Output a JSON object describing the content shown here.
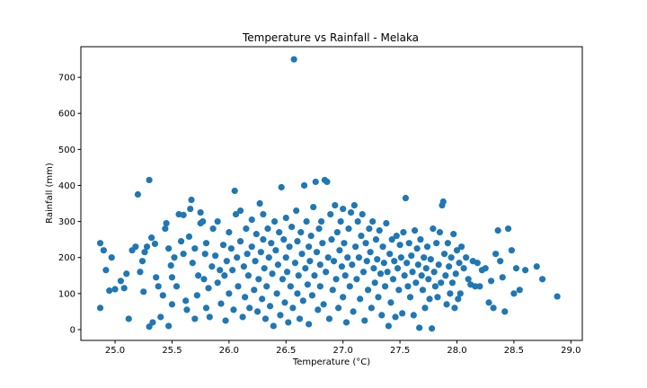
{
  "chart_data": {
    "type": "scatter",
    "title": "Temperature vs Rainfall - Melaka",
    "xlabel": "Temperature (°C)",
    "ylabel": "Rainfall (mm)",
    "xlim": [
      24.7,
      29.1
    ],
    "ylim": [
      -30,
      785
    ],
    "xticks": [
      25.0,
      25.5,
      26.0,
      26.5,
      27.0,
      27.5,
      28.0,
      28.5,
      29.0
    ],
    "xtick_labels": [
      "25.0",
      "25.5",
      "26.0",
      "26.5",
      "27.0",
      "27.5",
      "28.0",
      "28.5",
      "29.0"
    ],
    "yticks": [
      0,
      100,
      200,
      300,
      400,
      500,
      600,
      700
    ],
    "ytick_labels": [
      "0",
      "100",
      "200",
      "300",
      "400",
      "500",
      "600",
      "700"
    ],
    "grid": false,
    "marker_color": "#1f77b4",
    "series": [
      {
        "points": [
          [
            24.87,
            240
          ],
          [
            24.9,
            220
          ],
          [
            24.92,
            165
          ],
          [
            24.87,
            60
          ],
          [
            24.95,
            108
          ],
          [
            24.97,
            200
          ],
          [
            25.0,
            112
          ],
          [
            25.05,
            135
          ],
          [
            25.08,
            115
          ],
          [
            25.1,
            155
          ],
          [
            25.12,
            30
          ],
          [
            25.15,
            220
          ],
          [
            25.18,
            230
          ],
          [
            25.2,
            375
          ],
          [
            25.22,
            160
          ],
          [
            25.24,
            190
          ],
          [
            25.25,
            105
          ],
          [
            25.26,
            215
          ],
          [
            25.28,
            230
          ],
          [
            25.3,
            415
          ],
          [
            25.3,
            8
          ],
          [
            25.32,
            255
          ],
          [
            25.33,
            20
          ],
          [
            25.35,
            238
          ],
          [
            25.36,
            145
          ],
          [
            25.38,
            120
          ],
          [
            25.4,
            35
          ],
          [
            25.42,
            95
          ],
          [
            25.44,
            280
          ],
          [
            25.45,
            295
          ],
          [
            25.47,
            10
          ],
          [
            25.47,
            225
          ],
          [
            25.49,
            178
          ],
          [
            25.5,
            70
          ],
          [
            25.5,
            145
          ],
          [
            25.52,
            200
          ],
          [
            25.54,
            120
          ],
          [
            25.56,
            320
          ],
          [
            25.58,
            245
          ],
          [
            25.6,
            210
          ],
          [
            25.6,
            318
          ],
          [
            25.62,
            80
          ],
          [
            25.63,
            55
          ],
          [
            25.65,
            258
          ],
          [
            25.66,
            335
          ],
          [
            25.67,
            360
          ],
          [
            25.68,
            185
          ],
          [
            25.7,
            30
          ],
          [
            25.7,
            225
          ],
          [
            25.72,
            95
          ],
          [
            25.73,
            150
          ],
          [
            25.75,
            295
          ],
          [
            25.75,
            325
          ],
          [
            25.77,
            300
          ],
          [
            25.78,
            140
          ],
          [
            25.79,
            210
          ],
          [
            25.8,
            60
          ],
          [
            25.8,
            240
          ],
          [
            25.82,
            115
          ],
          [
            25.83,
            35
          ],
          [
            25.85,
            175
          ],
          [
            25.86,
            280
          ],
          [
            25.88,
            205
          ],
          [
            25.9,
            130
          ],
          [
            25.9,
            300
          ],
          [
            25.92,
            165
          ],
          [
            25.93,
            72
          ],
          [
            25.95,
            235
          ],
          [
            25.96,
            150
          ],
          [
            25.97,
            25
          ],
          [
            25.98,
            190
          ],
          [
            26.0,
            270
          ],
          [
            26.0,
            100
          ],
          [
            26.02,
            225
          ],
          [
            26.03,
            165
          ],
          [
            26.04,
            55
          ],
          [
            26.05,
            385
          ],
          [
            26.06,
            320
          ],
          [
            26.07,
            200
          ],
          [
            26.08,
            120
          ],
          [
            26.1,
            330
          ],
          [
            26.1,
            245
          ],
          [
            26.12,
            35
          ],
          [
            26.13,
            175
          ],
          [
            26.14,
            90
          ],
          [
            26.15,
            280
          ],
          [
            26.16,
            210
          ],
          [
            26.17,
            150
          ],
          [
            26.18,
            60
          ],
          [
            26.2,
            305
          ],
          [
            26.2,
            230
          ],
          [
            26.22,
            110
          ],
          [
            26.23,
            190
          ],
          [
            26.24,
            265
          ],
          [
            26.25,
            50
          ],
          [
            26.26,
            140
          ],
          [
            26.27,
            350
          ],
          [
            26.28,
            215
          ],
          [
            26.29,
            85
          ],
          [
            26.3,
            320
          ],
          [
            26.3,
            250
          ],
          [
            26.31,
            170
          ],
          [
            26.32,
            30
          ],
          [
            26.33,
            120
          ],
          [
            26.34,
            280
          ],
          [
            26.35,
            200
          ],
          [
            26.36,
            65
          ],
          [
            26.37,
            240
          ],
          [
            26.38,
            155
          ],
          [
            26.39,
            10
          ],
          [
            26.4,
            300
          ],
          [
            26.41,
            220
          ],
          [
            26.42,
            100
          ],
          [
            26.43,
            180
          ],
          [
            26.44,
            270
          ],
          [
            26.45,
            40
          ],
          [
            26.46,
            395
          ],
          [
            26.47,
            140
          ],
          [
            26.48,
            250
          ],
          [
            26.49,
            75
          ],
          [
            26.5,
            200
          ],
          [
            26.5,
            310
          ],
          [
            26.51,
            160
          ],
          [
            26.52,
            20
          ],
          [
            26.53,
            230
          ],
          [
            26.54,
            120
          ],
          [
            26.55,
            285
          ],
          [
            26.56,
            60
          ],
          [
            26.57,
            750
          ],
          [
            26.58,
            185
          ],
          [
            26.59,
            330
          ],
          [
            26.6,
            100
          ],
          [
            26.6,
            245
          ],
          [
            26.61,
            150
          ],
          [
            26.62,
            30
          ],
          [
            26.63,
            270
          ],
          [
            26.64,
            210
          ],
          [
            26.65,
            80
          ],
          [
            26.66,
            400
          ],
          [
            26.67,
            170
          ],
          [
            26.68,
            300
          ],
          [
            26.69,
            125
          ],
          [
            26.7,
            230
          ],
          [
            26.7,
            15
          ],
          [
            26.71,
            190
          ],
          [
            26.72,
            260
          ],
          [
            26.73,
            95
          ],
          [
            26.74,
            340
          ],
          [
            26.75,
            150
          ],
          [
            26.76,
            410
          ],
          [
            26.77,
            215
          ],
          [
            26.78,
            55
          ],
          [
            26.79,
            280
          ],
          [
            26.8,
            180
          ],
          [
            26.8,
            120
          ],
          [
            26.81,
            300
          ],
          [
            26.82,
            240
          ],
          [
            26.83,
            70
          ],
          [
            26.84,
            415
          ],
          [
            26.85,
            160
          ],
          [
            26.86,
            410
          ],
          [
            26.87,
            200
          ],
          [
            26.88,
            30
          ],
          [
            26.89,
            320
          ],
          [
            26.9,
            250
          ],
          [
            26.91,
            110
          ],
          [
            26.92,
            190
          ],
          [
            26.93,
            345
          ],
          [
            26.94,
            140
          ],
          [
            26.95,
            270
          ],
          [
            26.96,
            60
          ],
          [
            26.97,
            220
          ],
          [
            26.98,
            300
          ],
          [
            26.99,
            175
          ],
          [
            27.0,
            90
          ],
          [
            27.0,
            335
          ],
          [
            27.01,
            240
          ],
          [
            27.02,
            150
          ],
          [
            27.03,
            20
          ],
          [
            27.04,
            200
          ],
          [
            27.05,
            280
          ],
          [
            27.06,
            120
          ],
          [
            27.07,
            325
          ],
          [
            27.08,
            180
          ],
          [
            27.09,
            50
          ],
          [
            27.1,
            345
          ],
          [
            27.11,
            230
          ],
          [
            27.12,
            140
          ],
          [
            27.13,
            300
          ],
          [
            27.14,
            200
          ],
          [
            27.15,
            85
          ],
          [
            27.16,
            260
          ],
          [
            27.17,
            320
          ],
          [
            27.18,
            160
          ],
          [
            27.19,
            25
          ],
          [
            27.2,
            240
          ],
          [
            27.21,
            190
          ],
          [
            27.22,
            110
          ],
          [
            27.23,
            280
          ],
          [
            27.24,
            215
          ],
          [
            27.25,
            60
          ],
          [
            27.26,
            300
          ],
          [
            27.27,
            170
          ],
          [
            27.28,
            130
          ],
          [
            27.29,
            250
          ],
          [
            27.3,
            195
          ],
          [
            27.31,
            90
          ],
          [
            27.32,
            275
          ],
          [
            27.33,
            155
          ],
          [
            27.34,
            40
          ],
          [
            27.35,
            230
          ],
          [
            27.36,
            185
          ],
          [
            27.37,
            120
          ],
          [
            27.38,
            295
          ],
          [
            27.39,
            160
          ],
          [
            27.4,
            10
          ],
          [
            27.41,
            210
          ],
          [
            27.42,
            75
          ],
          [
            27.43,
            250
          ],
          [
            27.44,
            140
          ],
          [
            27.45,
            190
          ],
          [
            27.46,
            35
          ],
          [
            27.47,
            260
          ],
          [
            27.48,
            170
          ],
          [
            27.49,
            110
          ],
          [
            27.5,
            235
          ],
          [
            27.51,
            200
          ],
          [
            27.52,
            45
          ],
          [
            27.53,
            270
          ],
          [
            27.54,
            150
          ],
          [
            27.55,
            365
          ],
          [
            27.56,
            185
          ],
          [
            27.57,
            120
          ],
          [
            27.58,
            240
          ],
          [
            27.59,
            90
          ],
          [
            27.6,
            205
          ],
          [
            27.61,
            160
          ],
          [
            27.62,
            40
          ],
          [
            27.63,
            275
          ],
          [
            27.64,
            130
          ],
          [
            27.65,
            225
          ],
          [
            27.66,
            180
          ],
          [
            27.67,
            5
          ],
          [
            27.68,
            250
          ],
          [
            27.69,
            150
          ],
          [
            27.7,
            110
          ],
          [
            27.71,
            200
          ],
          [
            27.72,
            60
          ],
          [
            27.73,
            170
          ],
          [
            27.74,
            230
          ],
          [
            27.75,
            140
          ],
          [
            27.76,
            85
          ],
          [
            27.77,
            195
          ],
          [
            27.78,
            3
          ],
          [
            27.79,
            280
          ],
          [
            27.8,
            160
          ],
          [
            27.81,
            120
          ],
          [
            27.82,
            240
          ],
          [
            27.83,
            90
          ],
          [
            27.84,
            180
          ],
          [
            27.85,
            270
          ],
          [
            27.86,
            130
          ],
          [
            27.87,
            345
          ],
          [
            27.88,
            355
          ],
          [
            27.89,
            210
          ],
          [
            27.9,
            150
          ],
          [
            27.91,
            70
          ],
          [
            27.92,
            240
          ],
          [
            27.93,
            175
          ],
          [
            27.94,
            100
          ],
          [
            27.95,
            200
          ],
          [
            27.96,
            130
          ],
          [
            27.97,
            265
          ],
          [
            27.98,
            60
          ],
          [
            27.99,
            155
          ],
          [
            28.0,
            220
          ],
          [
            28.01,
            85
          ],
          [
            28.02,
            185
          ],
          [
            28.03,
            100
          ],
          [
            28.04,
            230
          ],
          [
            28.06,
            170
          ],
          [
            28.08,
            200
          ],
          [
            28.1,
            140
          ],
          [
            28.12,
            125
          ],
          [
            28.14,
            190
          ],
          [
            28.16,
            120
          ],
          [
            28.18,
            185
          ],
          [
            28.2,
            120
          ],
          [
            28.22,
            165
          ],
          [
            28.25,
            170
          ],
          [
            28.28,
            75
          ],
          [
            28.3,
            135
          ],
          [
            28.32,
            60
          ],
          [
            28.34,
            210
          ],
          [
            28.36,
            275
          ],
          [
            28.38,
            190
          ],
          [
            28.4,
            145
          ],
          [
            28.42,
            50
          ],
          [
            28.45,
            280
          ],
          [
            28.48,
            220
          ],
          [
            28.5,
            100
          ],
          [
            28.52,
            170
          ],
          [
            28.55,
            110
          ],
          [
            28.6,
            165
          ],
          [
            28.7,
            175
          ],
          [
            28.75,
            140
          ],
          [
            28.88,
            92
          ]
        ]
      }
    ]
  }
}
